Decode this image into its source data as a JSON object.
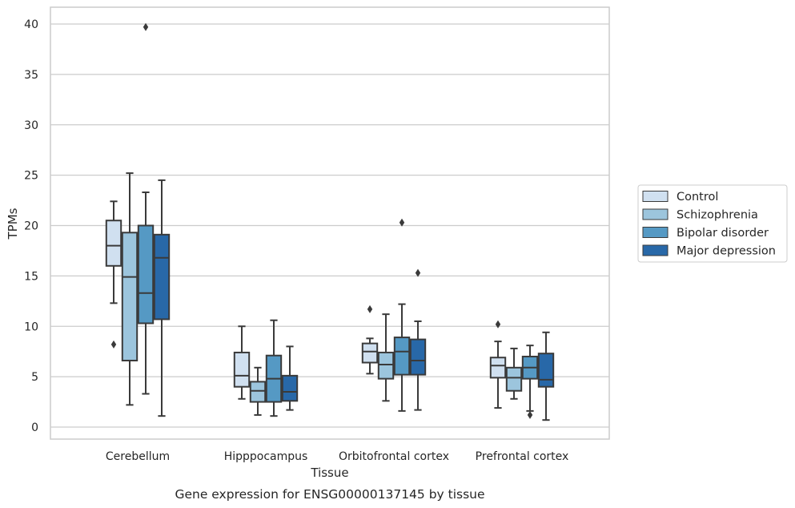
{
  "caption": "Gene expression for ENSG00000137145 by tissue",
  "chart_data": {
    "type": "boxplot",
    "xlabel": "Tissue",
    "ylabel": "TPMs",
    "categories": [
      "Cerebellum",
      "Hipppocampus",
      "Orbitofrontal cortex",
      "Prefrontal cortex"
    ],
    "yticks": [
      0,
      5,
      10,
      15,
      20,
      25,
      30,
      35,
      40
    ],
    "ylim": [
      -1.2,
      41.8
    ],
    "grid": "horizontal",
    "legend_position": "right",
    "series": [
      {
        "name": "Control",
        "color": "#d0e0f0",
        "boxes": [
          {
            "whislo": 12.3,
            "q1": 16.0,
            "med": 18.0,
            "q3": 20.5,
            "whishi": 22.4,
            "fliers": [
              8.2
            ]
          },
          {
            "whislo": 2.8,
            "q1": 4.0,
            "med": 5.1,
            "q3": 7.4,
            "whishi": 10.0,
            "fliers": []
          },
          {
            "whislo": 5.3,
            "q1": 6.4,
            "med": 7.5,
            "q3": 8.3,
            "whishi": 8.8,
            "fliers": [
              11.7
            ]
          },
          {
            "whislo": 1.9,
            "q1": 4.9,
            "med": 6.1,
            "q3": 6.9,
            "whishi": 8.5,
            "fliers": [
              10.2
            ]
          }
        ]
      },
      {
        "name": "Schizophrenia",
        "color": "#9cc5dd",
        "boxes": [
          {
            "whislo": 2.2,
            "q1": 6.6,
            "med": 14.9,
            "q3": 19.3,
            "whishi": 25.2,
            "fliers": []
          },
          {
            "whislo": 1.2,
            "q1": 2.5,
            "med": 3.6,
            "q3": 4.5,
            "whishi": 5.9,
            "fliers": []
          },
          {
            "whislo": 2.6,
            "q1": 4.8,
            "med": 6.2,
            "q3": 7.4,
            "whishi": 11.2,
            "fliers": []
          },
          {
            "whislo": 2.8,
            "q1": 3.6,
            "med": 4.9,
            "q3": 5.9,
            "whishi": 7.8,
            "fliers": []
          }
        ]
      },
      {
        "name": "Bipolar disorder",
        "color": "#5599c4",
        "boxes": [
          {
            "whislo": 3.3,
            "q1": 10.3,
            "med": 13.3,
            "q3": 20.0,
            "whishi": 23.3,
            "fliers": [
              39.7
            ]
          },
          {
            "whislo": 1.1,
            "q1": 2.5,
            "med": 4.8,
            "q3": 7.1,
            "whishi": 10.6,
            "fliers": []
          },
          {
            "whislo": 1.6,
            "q1": 5.2,
            "med": 7.5,
            "q3": 8.9,
            "whishi": 12.2,
            "fliers": [
              20.3
            ]
          },
          {
            "whislo": 1.6,
            "q1": 4.8,
            "med": 5.9,
            "q3": 7.0,
            "whishi": 8.1,
            "fliers": [
              1.2
            ]
          }
        ]
      },
      {
        "name": "Major depression",
        "color": "#2868a8",
        "boxes": [
          {
            "whislo": 1.1,
            "q1": 10.7,
            "med": 16.8,
            "q3": 19.1,
            "whishi": 24.5,
            "fliers": []
          },
          {
            "whislo": 1.7,
            "q1": 2.6,
            "med": 3.5,
            "q3": 5.1,
            "whishi": 8.0,
            "fliers": []
          },
          {
            "whislo": 1.7,
            "q1": 5.2,
            "med": 6.6,
            "q3": 8.7,
            "whishi": 10.5,
            "fliers": [
              15.3
            ]
          },
          {
            "whislo": 0.7,
            "q1": 4.0,
            "med": 4.7,
            "q3": 7.3,
            "whishi": 9.4,
            "fliers": []
          }
        ]
      }
    ]
  }
}
